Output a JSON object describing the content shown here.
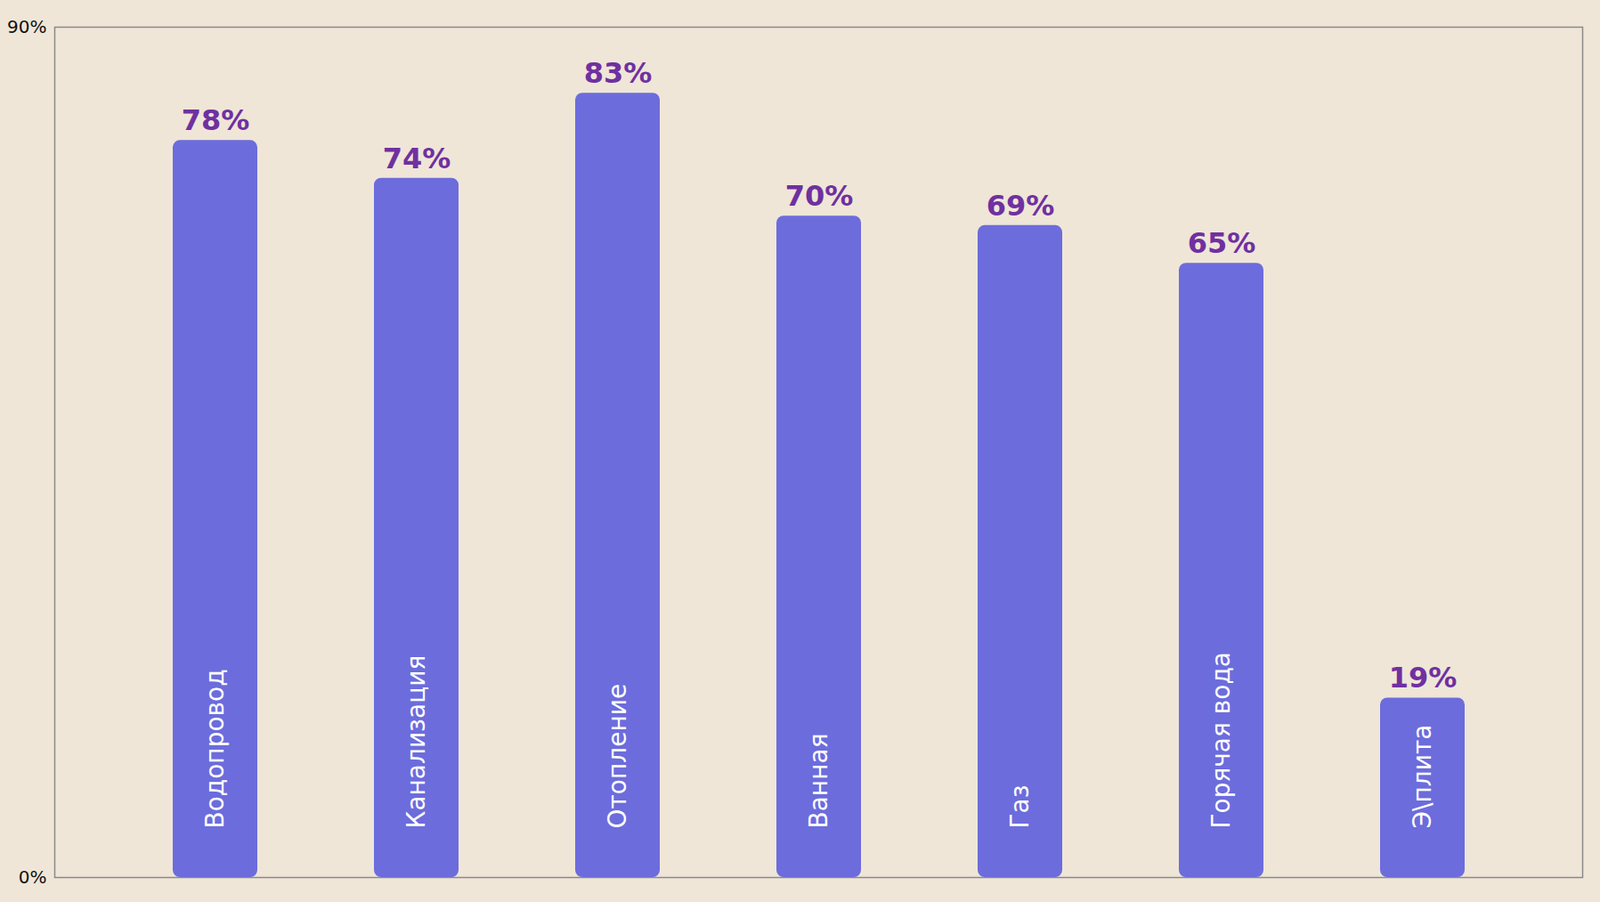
{
  "chart_data": {
    "type": "bar",
    "categories": [
      "Водопровод",
      "Канализация",
      "Отопление",
      "Ванная",
      "Газ",
      "Горячая вода",
      "Э\\плита"
    ],
    "values": [
      78,
      74,
      83,
      70,
      69,
      65,
      19
    ],
    "value_labels": [
      "78%",
      "74%",
      "83%",
      "70%",
      "69%",
      "65%",
      "19%"
    ],
    "color": "#6c6cdc",
    "ylim": [
      0,
      90
    ],
    "yticks": [
      {
        "value": 0,
        "label": "0%"
      },
      {
        "value": 90,
        "label": "90%"
      }
    ],
    "data_labels": true,
    "grid": false,
    "tick_labels": "y"
  }
}
